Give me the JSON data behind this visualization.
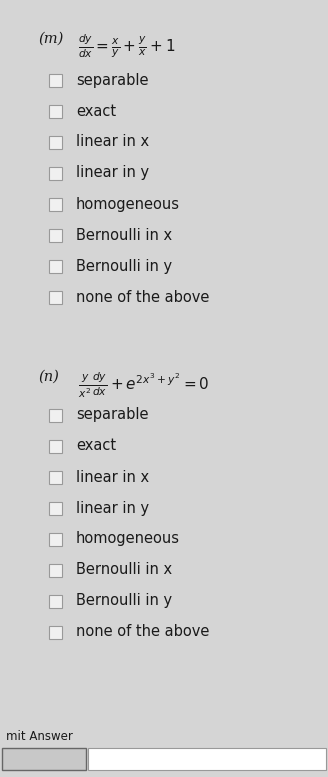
{
  "bg_color": "#d5d5d5",
  "text_color": "#1a1a1a",
  "checkbox_color": "#f0f0f0",
  "checkbox_edge": "#999999",
  "m_label": "(m)",
  "n_label": "(n)",
  "options": [
    "separable",
    "exact",
    "linear in x",
    "linear in y",
    "homogeneous",
    "Bernoulli in x",
    "Bernoulli in y",
    "none of the above"
  ],
  "submit_label": "mit Answer",
  "font_size_eq": 10,
  "font_size_opt": 10.5,
  "font_size_label": 10.5,
  "fig_width": 3.28,
  "fig_height": 7.77,
  "dpi": 100
}
